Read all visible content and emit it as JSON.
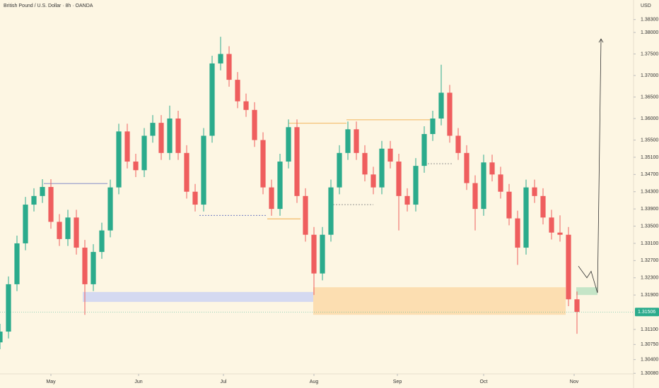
{
  "chart_data": {
    "type": "candlestick",
    "title": "British Pound / U.S. Dollar · 8h · OANDA",
    "currency": "USD",
    "x": [
      0,
      3,
      6,
      9,
      12,
      15,
      18,
      21,
      24,
      27,
      30,
      33,
      36,
      39,
      42,
      45,
      48,
      51,
      54,
      57,
      60,
      63,
      66,
      69,
      72,
      75,
      78,
      81,
      84,
      87,
      90,
      93,
      96,
      99,
      102,
      105,
      108,
      111,
      114,
      117,
      120,
      123,
      126,
      129,
      132,
      135,
      138,
      141,
      144,
      147,
      150,
      153,
      156,
      159,
      162,
      165,
      168,
      171,
      174,
      177,
      180,
      183,
      186,
      189,
      192,
      195,
      198,
      201,
      204
    ],
    "open": [
      1.308,
      1.3105,
      1.3215,
      1.331,
      1.34,
      1.342,
      1.3441,
      1.336,
      1.332,
      1.337,
      1.33,
      1.3215,
      1.329,
      1.334,
      1.344,
      1.357,
      1.35,
      1.348,
      1.356,
      1.359,
      1.352,
      1.36,
      1.352,
      1.343,
      1.34,
      1.356,
      1.3728,
      1.375,
      1.369,
      1.364,
      1.362,
      1.355,
      1.344,
      1.339,
      1.35,
      1.358,
      1.342,
      1.333,
      1.324,
      1.333,
      1.344,
      1.352,
      1.3575,
      1.352,
      1.347,
      1.344,
      1.353,
      1.35,
      1.342,
      1.34,
      1.349,
      1.3564,
      1.36,
      1.366,
      1.356,
      1.352,
      1.345,
      1.339,
      1.3498,
      1.347,
      1.343,
      1.3368,
      1.33,
      1.344,
      1.342,
      1.337,
      1.3335,
      1.333,
      1.318
    ],
    "high": [
      1.3123,
      1.3233,
      1.3328,
      1.3418,
      1.3438,
      1.3459,
      1.3459,
      1.3378,
      1.3388,
      1.3388,
      1.3318,
      1.3308,
      1.3358,
      1.3458,
      1.3588,
      1.3588,
      1.3518,
      1.3578,
      1.3608,
      1.3608,
      1.363,
      1.3618,
      1.3538,
      1.3448,
      1.3578,
      1.3746,
      1.379,
      1.3768,
      1.3708,
      1.3658,
      1.3638,
      1.3568,
      1.3458,
      1.3518,
      1.3598,
      1.3598,
      1.3438,
      1.3348,
      1.3348,
      1.3458,
      1.3538,
      1.3593,
      1.3593,
      1.3538,
      1.3488,
      1.3548,
      1.3548,
      1.3518,
      1.3438,
      1.3508,
      1.3582,
      1.3618,
      1.3725,
      1.3678,
      1.3578,
      1.3538,
      1.3468,
      1.3516,
      1.3516,
      1.3488,
      1.3448,
      1.3386,
      1.3458,
      1.3458,
      1.3438,
      1.3388,
      1.3375,
      1.3348,
      1.3198
    ],
    "low": [
      1.3064,
      1.3089,
      1.3199,
      1.3294,
      1.3384,
      1.3404,
      1.3344,
      1.3304,
      1.3304,
      1.3284,
      1.3144,
      1.3199,
      1.3274,
      1.3324,
      1.3424,
      1.3484,
      1.3464,
      1.3464,
      1.3544,
      1.3504,
      1.3504,
      1.3504,
      1.3414,
      1.3384,
      1.3384,
      1.3544,
      1.3712,
      1.3674,
      1.3624,
      1.3604,
      1.3534,
      1.3424,
      1.3374,
      1.3374,
      1.3484,
      1.3404,
      1.3314,
      1.319,
      1.3224,
      1.3314,
      1.3424,
      1.3504,
      1.3504,
      1.3454,
      1.3424,
      1.3424,
      1.3484,
      1.334,
      1.3384,
      1.3384,
      1.3474,
      1.3548,
      1.3584,
      1.3544,
      1.3504,
      1.3434,
      1.334,
      1.3374,
      1.3454,
      1.3414,
      1.3352,
      1.326,
      1.3284,
      1.3404,
      1.3354,
      1.3319,
      1.3314,
      1.3164,
      1.31
    ],
    "close": [
      1.3105,
      1.3215,
      1.331,
      1.34,
      1.342,
      1.3441,
      1.336,
      1.332,
      1.337,
      1.33,
      1.3215,
      1.329,
      1.334,
      1.344,
      1.357,
      1.35,
      1.348,
      1.356,
      1.359,
      1.352,
      1.36,
      1.352,
      1.343,
      1.34,
      1.356,
      1.3728,
      1.375,
      1.369,
      1.364,
      1.362,
      1.355,
      1.344,
      1.339,
      1.35,
      1.358,
      1.342,
      1.333,
      1.324,
      1.333,
      1.344,
      1.352,
      1.3575,
      1.352,
      1.347,
      1.344,
      1.353,
      1.35,
      1.342,
      1.34,
      1.349,
      1.3564,
      1.36,
      1.366,
      1.356,
      1.352,
      1.345,
      1.339,
      1.3498,
      1.347,
      1.343,
      1.3368,
      1.33,
      1.344,
      1.342,
      1.337,
      1.3335,
      1.333,
      1.318,
      1.31506
    ],
    "up_color": "#2bab8c",
    "down_color": "#ef5e5e",
    "last_price": 1.31506,
    "last_price_color": "#2bab8c",
    "xlim": [
      0,
      224
    ],
    "ylim": [
      1.30067,
      1.38754
    ],
    "xticks": [
      {
        "value": 18,
        "label": "May"
      },
      {
        "value": 49,
        "label": "Jun"
      },
      {
        "value": 79,
        "label": "Jul"
      },
      {
        "value": 111,
        "label": "Aug"
      },
      {
        "value": 140.5,
        "label": "Sep"
      },
      {
        "value": 171,
        "label": "Oct"
      },
      {
        "value": 203,
        "label": "Nov"
      }
    ],
    "yticks": [
      {
        "value": 1.383,
        "label": "1.38300"
      },
      {
        "value": 1.38,
        "label": "1.38000"
      },
      {
        "value": 1.375,
        "label": "1.37500"
      },
      {
        "value": 1.37,
        "label": "1.37000"
      },
      {
        "value": 1.365,
        "label": "1.36500"
      },
      {
        "value": 1.36,
        "label": "1.36000"
      },
      {
        "value": 1.355,
        "label": "1.35500"
      },
      {
        "value": 1.351,
        "label": "1.35100"
      },
      {
        "value": 1.347,
        "label": "1.34700"
      },
      {
        "value": 1.343,
        "label": "1.34300"
      },
      {
        "value": 1.339,
        "label": "1.33900"
      },
      {
        "value": 1.335,
        "label": "1.33500"
      },
      {
        "value": 1.331,
        "label": "1.33100"
      },
      {
        "value": 1.327,
        "label": "1.32700"
      },
      {
        "value": 1.323,
        "label": "1.32300"
      },
      {
        "value": 1.319,
        "label": "1.31900"
      },
      {
        "value": 1.311,
        "label": "1.31100"
      },
      {
        "value": 1.3075,
        "label": "1.30750"
      },
      {
        "value": 1.304,
        "label": "1.30400"
      },
      {
        "value": 1.3008,
        "label": "1.30080"
      }
    ],
    "grid": false,
    "zones": [
      {
        "x": [
          29.25,
          110.75
        ],
        "y": [
          1.3174,
          1.3197
        ],
        "color": "#cfd6f2"
      },
      {
        "x": [
          110.75,
          200
        ],
        "y": [
          1.3144,
          1.3208
        ],
        "color": "#fcdcab"
      },
      {
        "x": [
          203.75,
          211.25
        ],
        "y": [
          1.319,
          1.3208
        ],
        "color": "#bfe3c3"
      }
    ],
    "levels": [
      {
        "x": [
          15.5,
          38
        ],
        "y": 1.3449,
        "color": "#5b6bbf",
        "dashed": false
      },
      {
        "x": [
          70.5,
          94.5
        ],
        "y": 1.3375,
        "color": "#5b6bbf",
        "dashed": true
      },
      {
        "x": [
          94.5,
          106.25
        ],
        "y": 1.3367,
        "color": "#f0a030",
        "dashed": false
      },
      {
        "x": [
          102,
          122.5
        ],
        "y": 1.3589,
        "color": "#f0a030",
        "dashed": false
      },
      {
        "x": [
          122.5,
          153.75
        ],
        "y": 1.3597,
        "color": "#f0a030",
        "dashed": false
      },
      {
        "x": [
          117.75,
          132
        ],
        "y": 1.34,
        "color": "#888888",
        "dashed": true
      },
      {
        "x": [
          151.25,
          160
        ],
        "y": 1.3495,
        "color": "#888888",
        "dashed": true
      }
    ],
    "projection": {
      "x": [
        204.5,
        207.5,
        209,
        211.25,
        212.5
      ],
      "y": [
        1.3257,
        1.323,
        1.3245,
        1.3195,
        1.3785
      ],
      "color": "#333333"
    }
  }
}
